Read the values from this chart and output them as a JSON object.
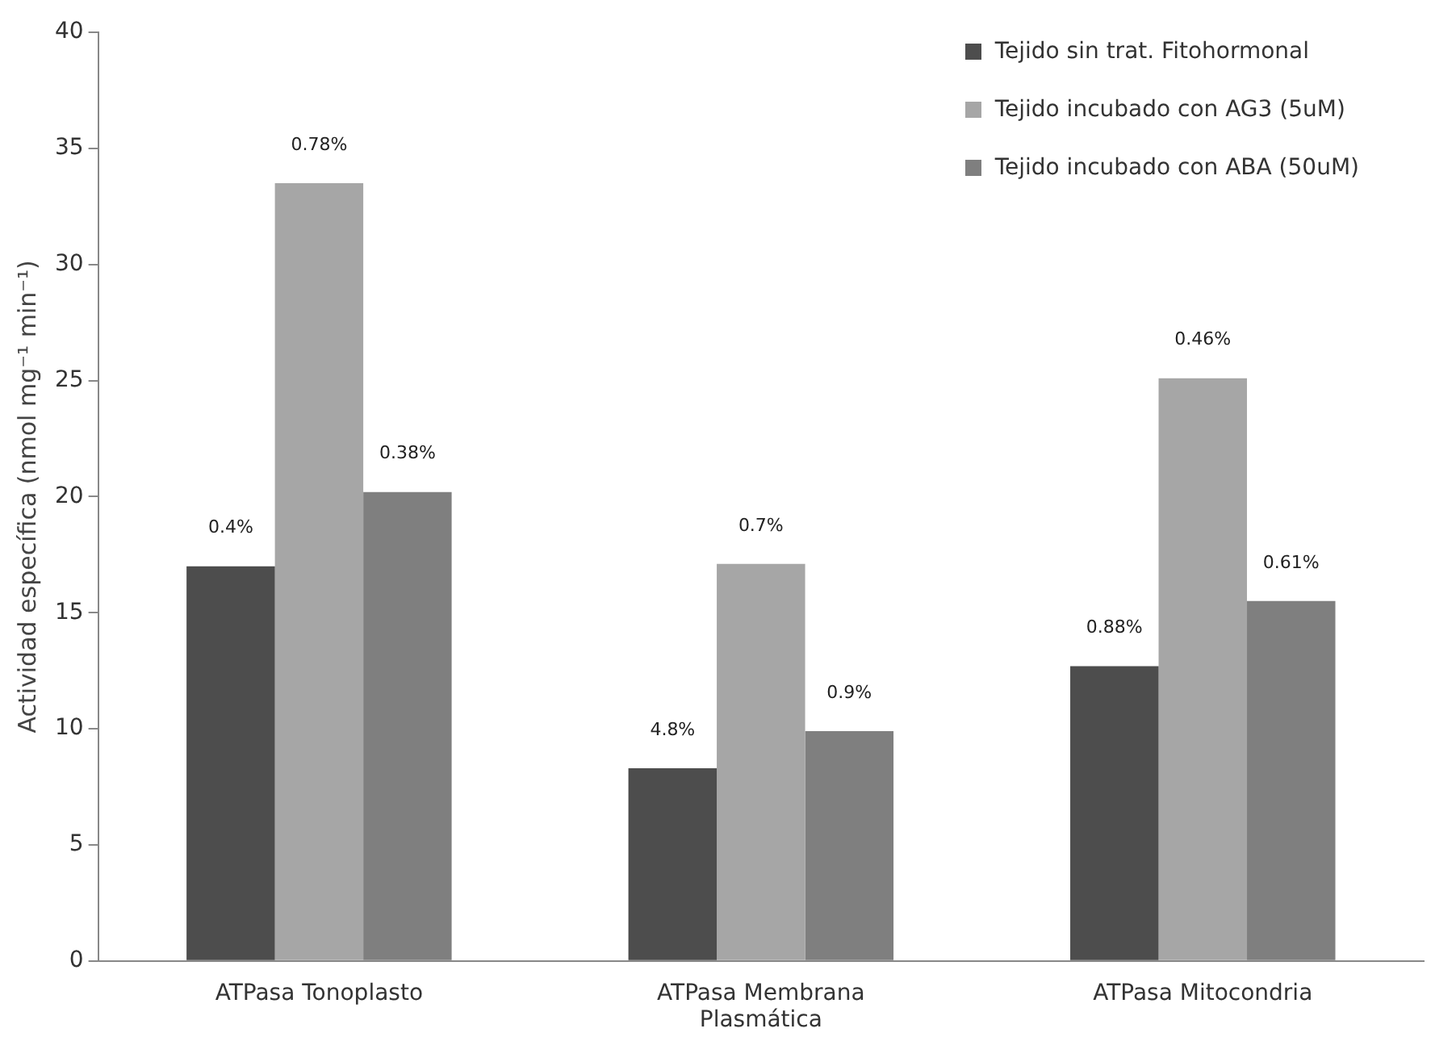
{
  "chart_data": {
    "type": "bar",
    "ylabel": "Actividad específica (nmol mg⁻¹ min⁻¹)",
    "categories": [
      "ATPasa Tonoplasto",
      "ATPasa Membrana Plasmática",
      "ATPasa Mitocondria"
    ],
    "series": [
      {
        "name": "Tejido sin trat. Fitohormonal",
        "color": "#4d4d4d",
        "values": [
          17.0,
          8.3,
          12.7
        ]
      },
      {
        "name": "Tejido incubado con AG3 (5uM)",
        "color": "#a6a6a6",
        "values": [
          33.5,
          17.1,
          25.1
        ]
      },
      {
        "name": "Tejido incubado con ABA (50uM)",
        "color": "#7f7f7f",
        "values": [
          20.2,
          9.9,
          15.5
        ]
      }
    ],
    "annotations": [
      "0.4%",
      "0.78%",
      "0.38%",
      "4.8%",
      "0.7%",
      "0.9%",
      "0.88%",
      "0.46%",
      "0.61%"
    ],
    "ylim": [
      0,
      40
    ],
    "yticks": [
      0,
      5,
      10,
      15,
      20,
      25,
      30,
      35,
      40
    ],
    "grid": false,
    "legend": "top right"
  }
}
